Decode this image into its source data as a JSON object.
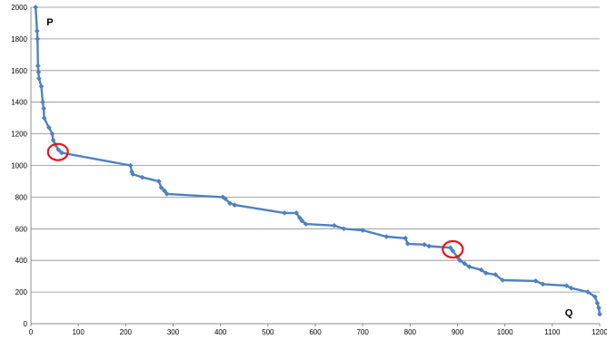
{
  "chart_data": {
    "type": "line",
    "title": "",
    "xlabel": "",
    "ylabel": "",
    "xlim": [
      0,
      1200
    ],
    "ylim": [
      0,
      2000
    ],
    "x_ticks": [
      0,
      100,
      200,
      300,
      400,
      500,
      600,
      700,
      800,
      900,
      1000,
      1100,
      1200
    ],
    "y_ticks": [
      0,
      200,
      400,
      600,
      800,
      1000,
      1200,
      1400,
      1600,
      1800,
      2000
    ],
    "grid": "horizontal",
    "legend": "none",
    "series": [
      {
        "color": "#4f81bd",
        "marker": "diamond",
        "points": [
          [
            10,
            2000
          ],
          [
            13,
            1850
          ],
          [
            14,
            1800
          ],
          [
            15,
            1630
          ],
          [
            16,
            1590
          ],
          [
            17,
            1550
          ],
          [
            22,
            1500
          ],
          [
            25,
            1400
          ],
          [
            27,
            1360
          ],
          [
            28,
            1300
          ],
          [
            38,
            1240
          ],
          [
            45,
            1200
          ],
          [
            47,
            1160
          ],
          [
            52,
            1130
          ],
          [
            58,
            1100
          ],
          [
            65,
            1080
          ],
          [
            210,
            1000
          ],
          [
            213,
            960
          ],
          [
            215,
            945
          ],
          [
            235,
            925
          ],
          [
            270,
            900
          ],
          [
            275,
            860
          ],
          [
            282,
            840
          ],
          [
            287,
            820
          ],
          [
            405,
            800
          ],
          [
            410,
            790
          ],
          [
            420,
            760
          ],
          [
            430,
            750
          ],
          [
            535,
            700
          ],
          [
            560,
            700
          ],
          [
            567,
            670
          ],
          [
            572,
            650
          ],
          [
            580,
            630
          ],
          [
            640,
            620
          ],
          [
            660,
            600
          ],
          [
            700,
            590
          ],
          [
            750,
            550
          ],
          [
            790,
            540
          ],
          [
            795,
            505
          ],
          [
            830,
            500
          ],
          [
            840,
            490
          ],
          [
            885,
            480
          ],
          [
            890,
            460
          ],
          [
            900,
            420
          ],
          [
            905,
            400
          ],
          [
            915,
            380
          ],
          [
            925,
            360
          ],
          [
            950,
            340
          ],
          [
            960,
            320
          ],
          [
            980,
            310
          ],
          [
            995,
            275
          ],
          [
            1065,
            270
          ],
          [
            1080,
            250
          ],
          [
            1130,
            240
          ],
          [
            1140,
            225
          ],
          [
            1175,
            200
          ],
          [
            1190,
            170
          ],
          [
            1195,
            130
          ],
          [
            1198,
            100
          ],
          [
            1200,
            60
          ]
        ]
      }
    ],
    "annotations": [
      {
        "text": "P",
        "x": 40,
        "y": 1885
      },
      {
        "text": "Q",
        "x": 1135,
        "y": 50
      }
    ],
    "highlights": [
      {
        "x": 57,
        "y": 1085,
        "shape": "circle",
        "color": "#e8141c"
      },
      {
        "x": 890,
        "y": 470,
        "shape": "circle",
        "color": "#e8141c"
      }
    ]
  }
}
